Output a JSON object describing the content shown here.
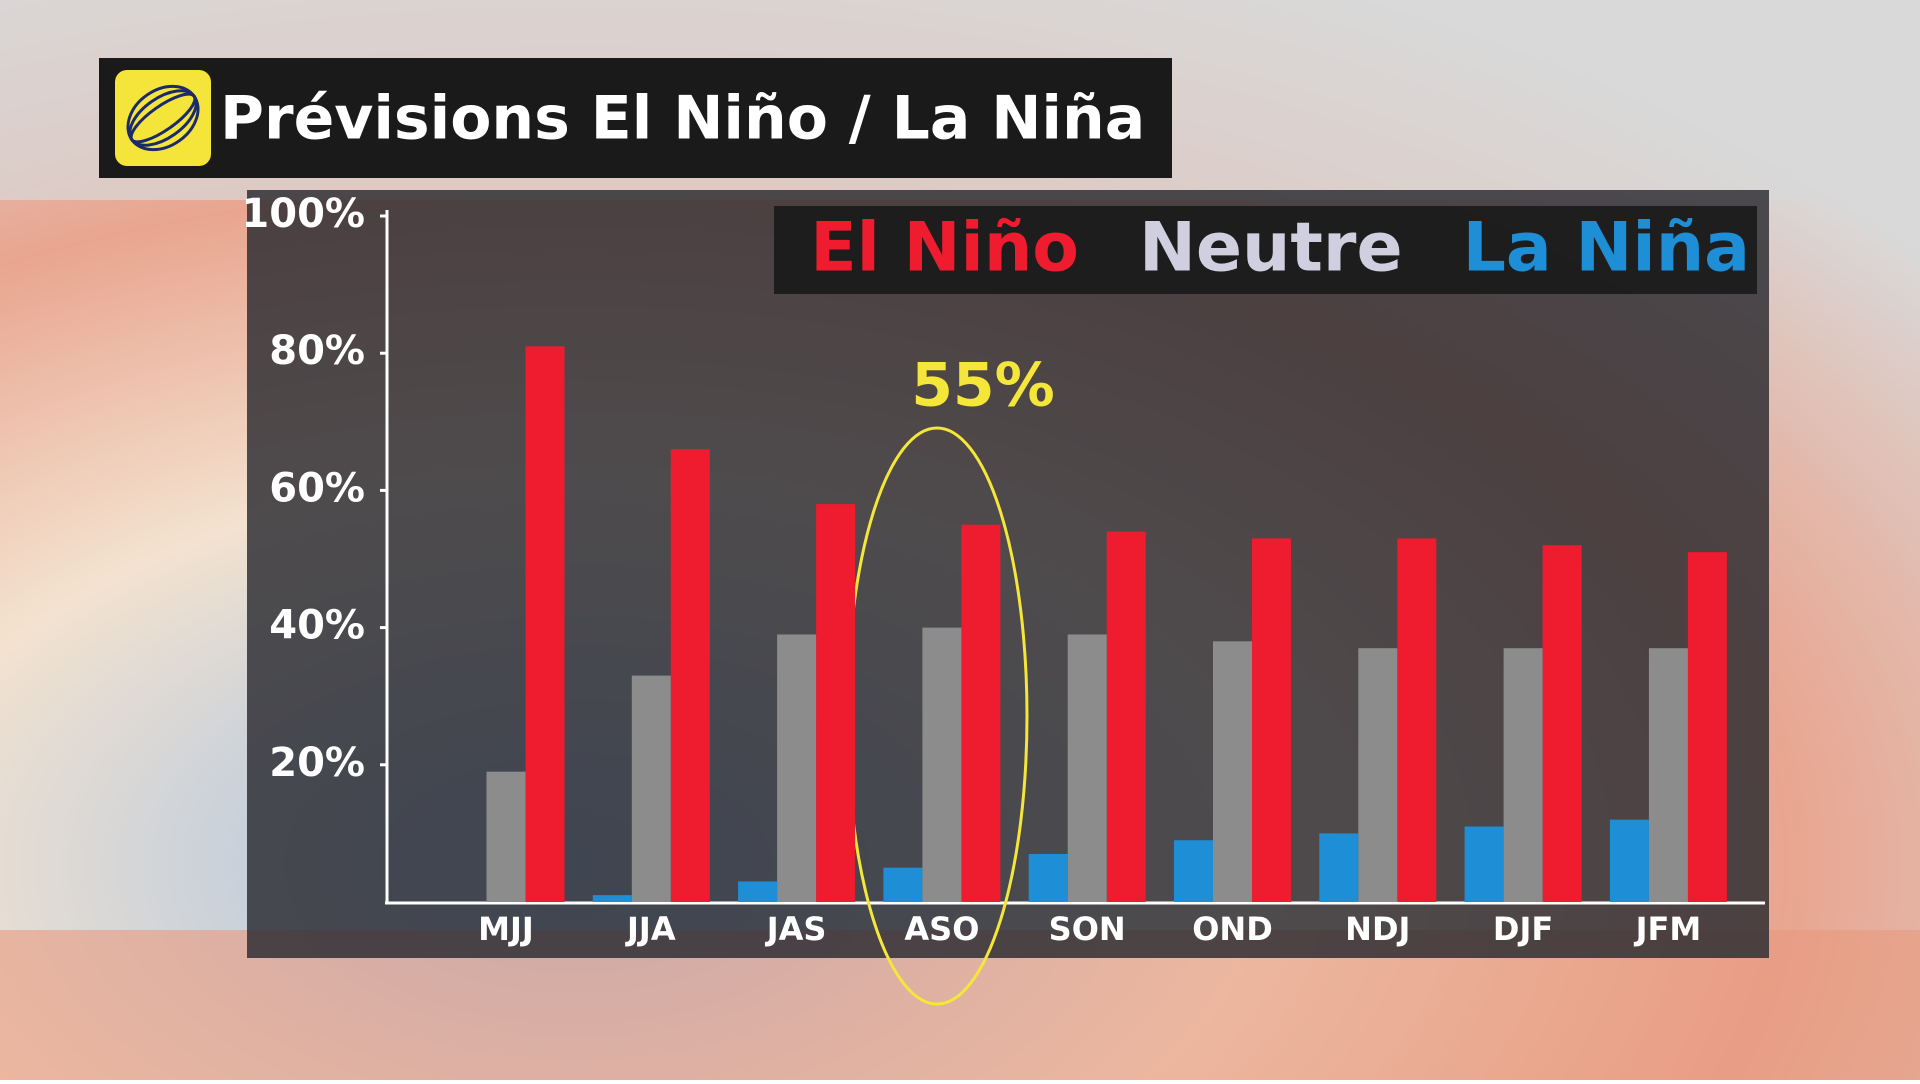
{
  "chart_data": {
    "type": "bar",
    "title": "Prévisions El Niño / La Niña",
    "categories": [
      "MJJ",
      "JJA",
      "JAS",
      "ASO",
      "SON",
      "OND",
      "NDJ",
      "DJF",
      "JFM"
    ],
    "series": [
      {
        "name": "El Niño",
        "color": "#ee1c2e",
        "values": [
          81,
          66,
          58,
          55,
          54,
          53,
          53,
          52,
          51
        ]
      },
      {
        "name": "Neutre",
        "color": "#8c8c8c",
        "values": [
          19,
          33,
          39,
          40,
          39,
          38,
          37,
          37,
          37
        ]
      },
      {
        "name": "La Niña",
        "color": "#1e8fd6",
        "values": [
          0,
          1,
          3,
          5,
          7,
          9,
          10,
          11,
          12
        ]
      }
    ],
    "ylim": [
      0,
      100
    ],
    "yticks": [
      {
        "value": 20,
        "label": "20%"
      },
      {
        "value": 40,
        "label": "40%"
      },
      {
        "value": 60,
        "label": "60%"
      },
      {
        "value": 80,
        "label": "80%"
      },
      {
        "value": 100,
        "label": "100%"
      }
    ],
    "annotation": "55%",
    "legend": "top-right"
  }
}
